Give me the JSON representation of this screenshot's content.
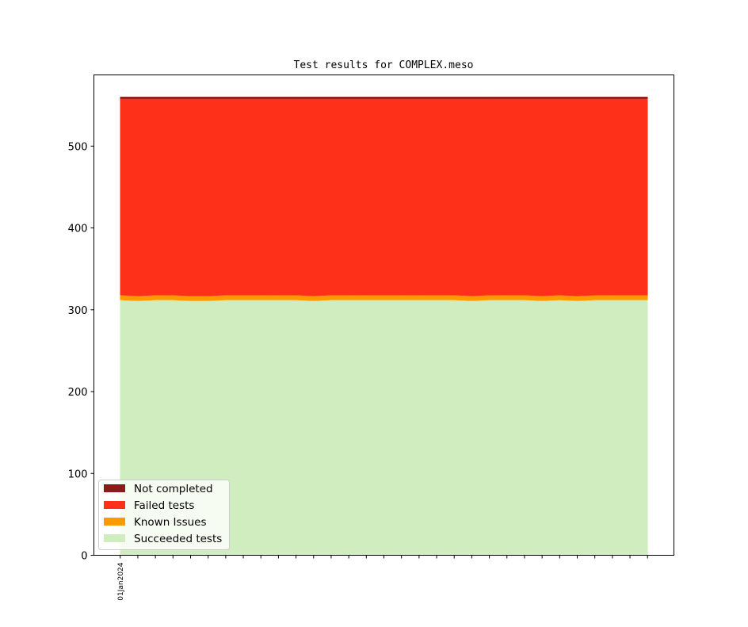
{
  "chart_data": {
    "type": "area",
    "stacked": true,
    "title": "Test results for COMPLEX.meso",
    "xlabel": "",
    "ylabel": "",
    "x": [
      "01Jan2024",
      "02Jan2024",
      "03Jan2024",
      "04Jan2024",
      "05Jan2024",
      "06Jan2024",
      "07Jan2024",
      "08Jan2024",
      "09Jan2024",
      "10Jan2024",
      "11Jan2024",
      "12Jan2024",
      "13Jan2024",
      "14Jan2024",
      "15Jan2024",
      "16Jan2024",
      "17Jan2024",
      "18Jan2024",
      "19Jan2024",
      "20Jan2024",
      "21Jan2024",
      "22Jan2024",
      "23Jan2024",
      "24Jan2024",
      "25Jan2024",
      "26Jan2024",
      "27Jan2024",
      "28Jan2024",
      "29Jan2024",
      "30Jan2024",
      "31Jan2024"
    ],
    "x_tick_labels_shown": [
      "01Jan2024"
    ],
    "ylim": [
      0,
      587
    ],
    "yticks": [
      0,
      100,
      200,
      300,
      400,
      500
    ],
    "grid": false,
    "legend_position": "bottom-left",
    "series": [
      {
        "name": "Succeeded tests",
        "color": "#d0edbf",
        "values": [
          312,
          311,
          312,
          312,
          311,
          311,
          312,
          312,
          312,
          312,
          312,
          311,
          312,
          312,
          312,
          312,
          312,
          312,
          312,
          312,
          311,
          312,
          312,
          312,
          311,
          312,
          311,
          312,
          312,
          312,
          312
        ]
      },
      {
        "name": "Known Issues",
        "color": "#ff9900",
        "values": [
          6,
          6,
          6,
          6,
          6,
          6,
          6,
          6,
          6,
          6,
          6,
          6,
          6,
          6,
          6,
          6,
          6,
          6,
          6,
          6,
          6,
          6,
          6,
          6,
          6,
          6,
          6,
          6,
          6,
          6,
          6
        ]
      },
      {
        "name": "Failed tests",
        "color": "#ff3019",
        "values": [
          240,
          241,
          240,
          240,
          241,
          241,
          240,
          240,
          240,
          240,
          240,
          241,
          240,
          240,
          240,
          240,
          240,
          240,
          240,
          240,
          241,
          240,
          240,
          240,
          241,
          240,
          241,
          240,
          240,
          240,
          240
        ]
      },
      {
        "name": "Not completed",
        "color": "#8b1a1a",
        "values": [
          2,
          2,
          2,
          2,
          2,
          2,
          2,
          2,
          2,
          2,
          2,
          2,
          2,
          2,
          2,
          2,
          2,
          2,
          2,
          2,
          2,
          2,
          2,
          2,
          2,
          2,
          2,
          2,
          2,
          2,
          2
        ]
      }
    ]
  }
}
